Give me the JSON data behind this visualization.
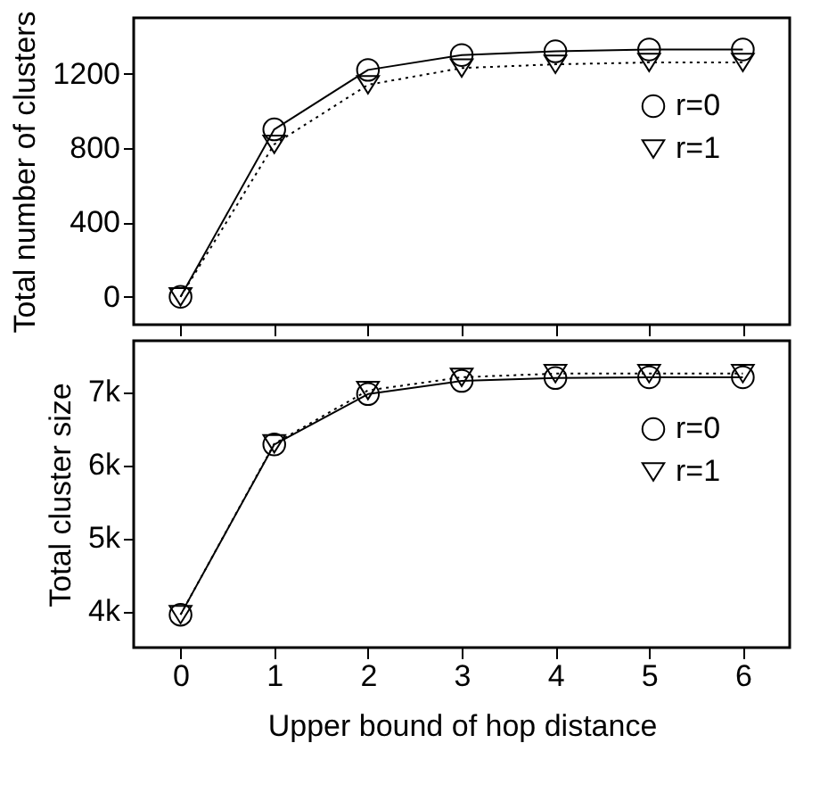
{
  "chart_data": [
    {
      "type": "line",
      "ylabel": "Total number of clusters",
      "x": [
        0,
        1,
        2,
        3,
        4,
        5,
        6
      ],
      "xlim": [
        -0.5,
        6.5
      ],
      "xticks": [
        0,
        1,
        2,
        3,
        4,
        5,
        6
      ],
      "ylim": [
        -150,
        1500
      ],
      "yticks": [
        0,
        400,
        800,
        1200
      ],
      "tick_labels": "y",
      "legend": "right",
      "series": [
        {
          "name": "r=0",
          "color": "#000000",
          "marker": "circle",
          "line_style": "solid",
          "values": [
            0,
            900,
            1220,
            1300,
            1320,
            1330,
            1330
          ]
        },
        {
          "name": "r=1",
          "color": "#000000",
          "marker": "triangle",
          "line_style": "dotted",
          "values": [
            0,
            820,
            1140,
            1230,
            1250,
            1260,
            1260
          ]
        }
      ]
    },
    {
      "type": "line",
      "xlabel": "Upper bound of hop distance",
      "ylabel": "Total cluster size",
      "x": [
        0,
        1,
        2,
        3,
        4,
        5,
        6
      ],
      "xlim": [
        -0.5,
        6.5
      ],
      "xticks": [
        0,
        1,
        2,
        3,
        4,
        5,
        6
      ],
      "ylim": [
        3500,
        7700
      ],
      "yticks": [
        {
          "value": 4000,
          "label": "4k"
        },
        {
          "value": 5000,
          "label": "5k"
        },
        {
          "value": 6000,
          "label": "6k"
        },
        {
          "value": 7000,
          "label": "7k"
        }
      ],
      "legend": "right",
      "series": [
        {
          "name": "r=0",
          "color": "#000000",
          "marker": "circle",
          "line_style": "solid",
          "values": [
            3950,
            6280,
            6970,
            7150,
            7190,
            7200,
            7200
          ]
        },
        {
          "name": "r=1",
          "color": "#000000",
          "marker": "triangle",
          "line_style": "dotted",
          "values": [
            3950,
            6290,
            7020,
            7200,
            7250,
            7250,
            7250
          ]
        }
      ]
    }
  ]
}
